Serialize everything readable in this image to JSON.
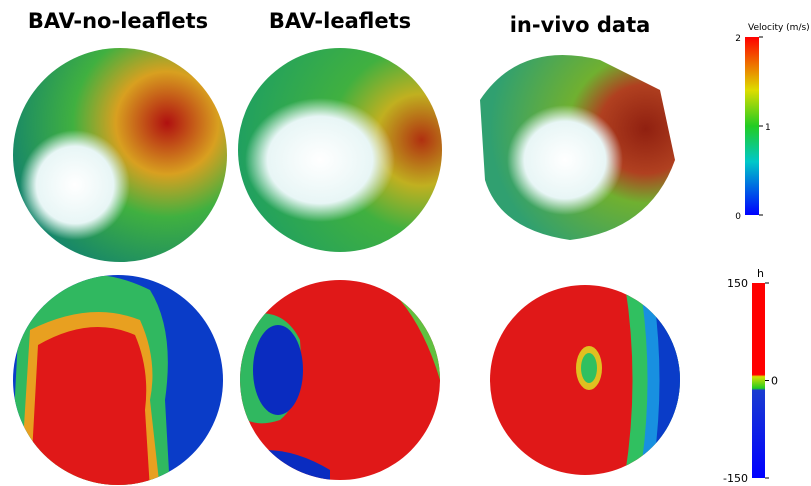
{
  "panels": [
    {
      "title": "BAV-no-leaflets"
    },
    {
      "title": "BAV-leaflets"
    },
    {
      "title": "in-vivo data"
    }
  ],
  "colorbars": [
    {
      "label": "Velocity (m/s)",
      "ticks": [
        2,
        1,
        0
      ]
    },
    {
      "label": "h",
      "ticks": [
        150,
        0,
        -150
      ]
    }
  ]
}
